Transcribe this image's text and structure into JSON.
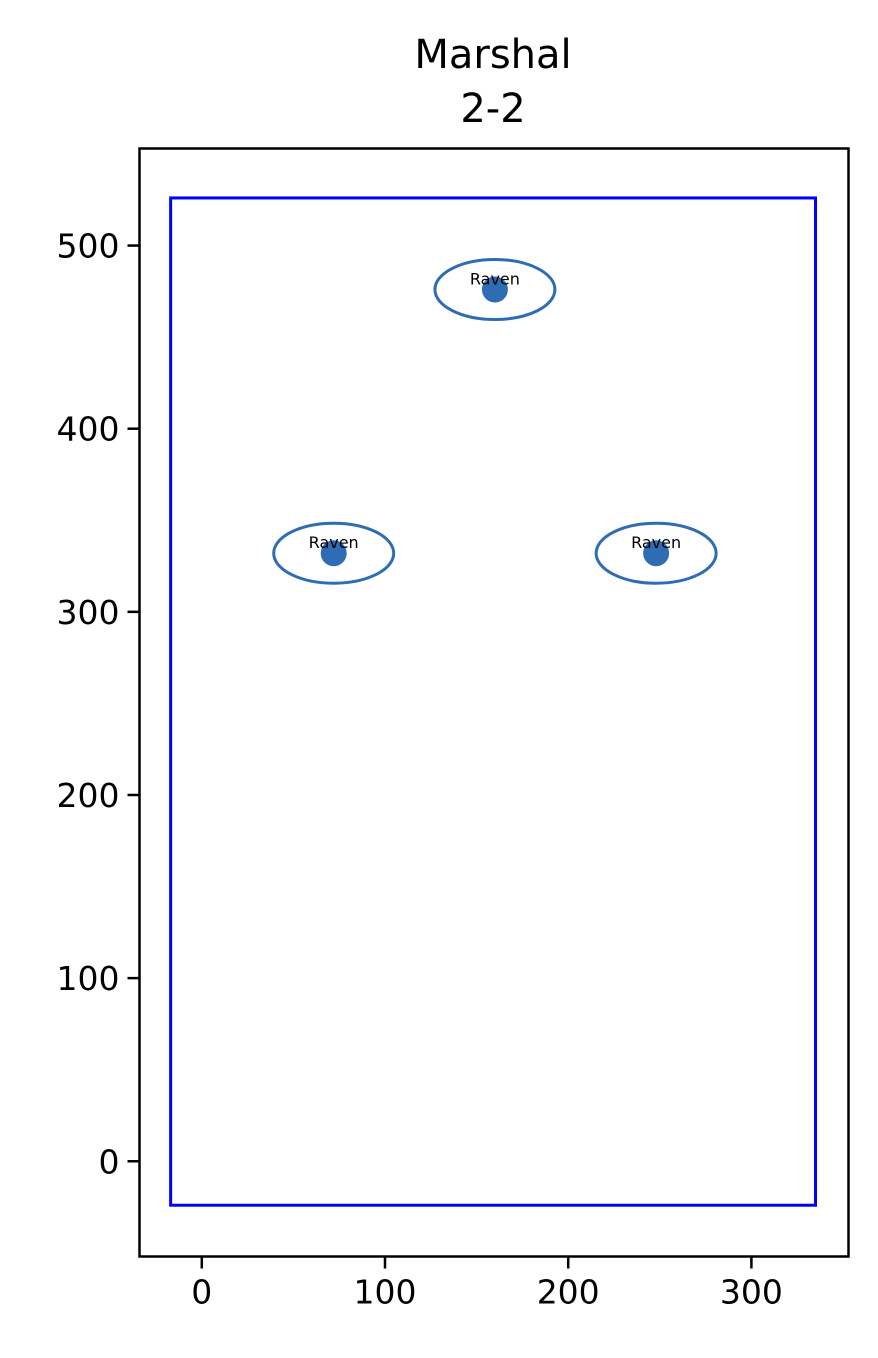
{
  "chart_data": {
    "type": "scatter",
    "title": "Marshal",
    "subtitle": "2-2",
    "xlabel": "",
    "ylabel": "",
    "xlim": [
      -34,
      353
    ],
    "ylim": [
      -52,
      553
    ],
    "xticks": [
      0,
      100,
      200,
      300
    ],
    "yticks": [
      0,
      100,
      200,
      300,
      400,
      500
    ],
    "grid": false,
    "boundary_rect": {
      "x": [
        -17,
        335
      ],
      "y": [
        -24,
        526
      ],
      "color": "#0000ff"
    },
    "marker_color": "#2e6db4",
    "points": [
      {
        "x": 160,
        "y": 476,
        "label": "Raven"
      },
      {
        "x": 72,
        "y": 332,
        "label": "Raven"
      },
      {
        "x": 248,
        "y": 332,
        "label": "Raven"
      }
    ]
  }
}
